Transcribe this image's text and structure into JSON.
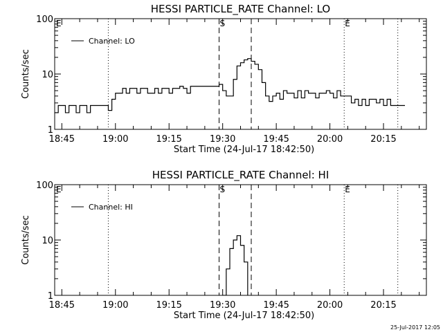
{
  "footer": "25-Jul-2017 12:05",
  "chart_data": [
    {
      "type": "line",
      "title": "HESSI PARTICLE_RATE Channel: LO",
      "xlabel": "Start Time (24-Jul-17 18:42:50)",
      "ylabel": "Counts/sec",
      "xticks": [
        "18:45",
        "19:00",
        "19:15",
        "19:30",
        "19:45",
        "20:00",
        "20:15"
      ],
      "yticks": [
        "1",
        "10",
        "100"
      ],
      "yscale": "log",
      "ylim": [
        1,
        100
      ],
      "xlim": [
        "18:43",
        "20:27"
      ],
      "legend_position": "top-left",
      "series": [
        {
          "name": "Channel: LO",
          "x": [
            "18:43",
            "18:44",
            "18:45",
            "18:46",
            "18:47",
            "18:48",
            "18:49",
            "18:50",
            "18:51",
            "18:52",
            "18:53",
            "18:54",
            "18:55",
            "18:56",
            "18:57",
            "18:58",
            "18:59",
            "19:00",
            "19:01",
            "19:02",
            "19:03",
            "19:04",
            "19:05",
            "19:06",
            "19:07",
            "19:08",
            "19:09",
            "19:10",
            "19:11",
            "19:12",
            "19:13",
            "19:14",
            "19:15",
            "19:16",
            "19:17",
            "19:18",
            "19:19",
            "19:20",
            "19:21",
            "19:22",
            "19:23",
            "19:24",
            "19:25",
            "19:26",
            "19:27",
            "19:28",
            "19:29",
            "19:30",
            "19:31",
            "19:32",
            "19:33",
            "19:34",
            "19:35",
            "19:36",
            "19:37",
            "19:38",
            "19:39",
            "19:40",
            "19:41",
            "19:42",
            "19:43",
            "19:44",
            "19:45",
            "19:46",
            "19:47",
            "19:48",
            "19:49",
            "19:50",
            "19:51",
            "19:52",
            "19:53",
            "19:54",
            "19:55",
            "19:56",
            "19:57",
            "19:58",
            "19:59",
            "20:00",
            "20:01",
            "20:02",
            "20:03",
            "20:04",
            "20:05",
            "20:06",
            "20:07",
            "20:08",
            "20:09",
            "20:10",
            "20:11",
            "20:12",
            "20:13",
            "20:14",
            "20:15",
            "20:16",
            "20:17",
            "20:18",
            "20:19",
            "20:20",
            "20:21"
          ],
          "y": [
            2,
            2.7,
            2.7,
            2,
            2.7,
            2.7,
            2,
            2.7,
            2.7,
            2,
            2.7,
            2.7,
            2.7,
            2.7,
            2.7,
            2.2,
            3.5,
            4.5,
            4.5,
            5.5,
            4.5,
            5.5,
            5.5,
            4.5,
            5.5,
            5.5,
            4.5,
            4.5,
            5.5,
            4.5,
            5.5,
            5.5,
            4.5,
            5.5,
            5.5,
            6,
            5.5,
            4.5,
            6,
            6,
            6,
            6,
            6,
            6,
            6,
            6,
            6.5,
            5,
            4,
            4,
            8,
            14,
            16,
            18,
            19,
            17,
            15,
            12,
            7,
            4,
            3.2,
            4,
            4.5,
            3.5,
            5,
            4.5,
            4.5,
            3.7,
            5,
            3.7,
            5,
            4.5,
            4.5,
            3.7,
            4.5,
            4.5,
            5,
            4.5,
            3.7,
            5,
            4,
            4,
            4,
            3,
            3.5,
            2.7,
            3.5,
            2.7,
            3.5,
            3.5,
            3,
            3.5,
            2.7,
            3.5,
            2.7,
            2.7,
            2.7,
            2.7,
            2.7
          ]
        }
      ],
      "vlines": [
        {
          "x": "18:58",
          "style": "dotted"
        },
        {
          "x": "19:29",
          "style": "dashed",
          "label": "S"
        },
        {
          "x": "19:38",
          "style": "dashed"
        },
        {
          "x": "20:04",
          "style": "dotted",
          "label": "E"
        },
        {
          "x": "20:19",
          "style": "dotted"
        }
      ],
      "corner_label": "E"
    },
    {
      "type": "line",
      "title": "HESSI PARTICLE_RATE Channel: HI",
      "xlabel": "Start Time (24-Jul-17 18:42:50)",
      "ylabel": "Counts/sec",
      "xticks": [
        "18:45",
        "19:00",
        "19:15",
        "19:30",
        "19:45",
        "20:00",
        "20:15"
      ],
      "yticks": [
        "1",
        "10",
        "100"
      ],
      "yscale": "log",
      "ylim": [
        1,
        100
      ],
      "xlim": [
        "18:43",
        "20:27"
      ],
      "legend_position": "top-left",
      "series": [
        {
          "name": "Channel: HI",
          "x": [
            "19:30",
            "19:31",
            "19:32",
            "19:33",
            "19:34",
            "19:35",
            "19:36",
            "19:37"
          ],
          "y": [
            1,
            3,
            7,
            10,
            12,
            8,
            4,
            1
          ]
        }
      ],
      "vlines": [
        {
          "x": "18:58",
          "style": "dotted"
        },
        {
          "x": "19:29",
          "style": "dashed",
          "label": "S"
        },
        {
          "x": "19:38",
          "style": "dashed"
        },
        {
          "x": "20:04",
          "style": "dotted",
          "label": "E"
        },
        {
          "x": "20:19",
          "style": "dotted"
        }
      ],
      "corner_label": "E"
    }
  ]
}
